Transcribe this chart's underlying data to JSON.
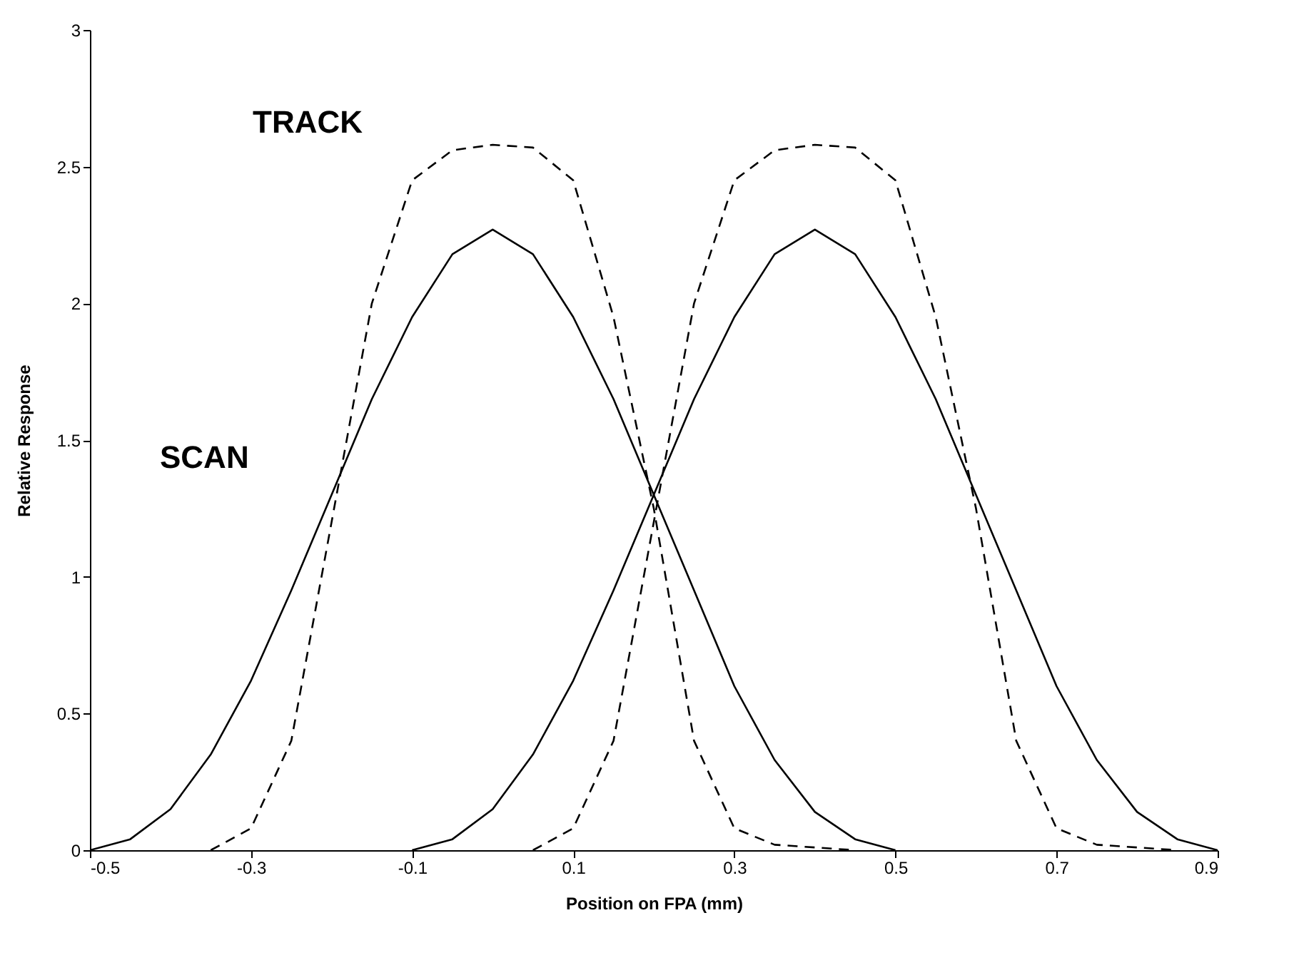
{
  "chart_data": {
    "type": "line",
    "xlabel": "Position on FPA (mm)",
    "ylabel": "Relative Response",
    "xlim": [
      -0.5,
      0.9
    ],
    "ylim": [
      0,
      3
    ],
    "xticks": [
      -0.5,
      -0.3,
      -0.1,
      0.1,
      0.3,
      0.5,
      0.7,
      0.9
    ],
    "yticks": [
      0,
      0.5,
      1,
      1.5,
      2,
      2.5,
      3
    ],
    "grid": false,
    "series": [
      {
        "color": "#000000",
        "line_style": "solid",
        "x": [
          -0.5,
          -0.45,
          -0.4,
          -0.35,
          -0.3,
          -0.25,
          -0.2,
          -0.15,
          -0.1,
          -0.05,
          0,
          0.05,
          0.1,
          0.15,
          0.2,
          0.25,
          0.3,
          0.35,
          0.4,
          0.45,
          0.5
        ],
        "values": [
          0,
          0.04,
          0.15,
          0.35,
          0.62,
          0.95,
          1.3,
          1.65,
          1.95,
          2.18,
          2.27,
          2.18,
          1.95,
          1.65,
          1.3,
          0.95,
          0.6,
          0.33,
          0.14,
          0.04,
          0
        ]
      },
      {
        "color": "#000000",
        "line_style": "solid",
        "x": [
          -0.1,
          -0.05,
          0,
          0.05,
          0.1,
          0.15,
          0.2,
          0.25,
          0.3,
          0.35,
          0.4,
          0.45,
          0.5,
          0.55,
          0.6,
          0.65,
          0.7,
          0.75,
          0.8,
          0.85,
          0.9
        ],
        "values": [
          0,
          0.04,
          0.15,
          0.35,
          0.62,
          0.95,
          1.3,
          1.65,
          1.95,
          2.18,
          2.27,
          2.18,
          1.95,
          1.65,
          1.3,
          0.95,
          0.6,
          0.33,
          0.14,
          0.04,
          0
        ]
      },
      {
        "color": "#000000",
        "line_style": "dashed",
        "x": [
          -0.35,
          -0.3,
          -0.25,
          -0.2,
          -0.15,
          -0.1,
          -0.05,
          0,
          0.05,
          0.1,
          0.15,
          0.2,
          0.25,
          0.3,
          0.35,
          0.45
        ],
        "values": [
          0,
          0.08,
          0.4,
          1.2,
          2.0,
          2.45,
          2.56,
          2.58,
          2.57,
          2.45,
          1.95,
          1.25,
          0.4,
          0.08,
          0.02,
          0
        ]
      },
      {
        "color": "#000000",
        "line_style": "dashed",
        "x": [
          0.05,
          0.1,
          0.15,
          0.2,
          0.25,
          0.3,
          0.35,
          0.4,
          0.45,
          0.5,
          0.55,
          0.6,
          0.65,
          0.7,
          0.75,
          0.85
        ],
        "values": [
          0,
          0.08,
          0.4,
          1.2,
          2.0,
          2.45,
          2.56,
          2.58,
          2.57,
          2.45,
          1.95,
          1.25,
          0.4,
          0.08,
          0.02,
          0
        ]
      }
    ],
    "annotations": [
      "TRACK",
      "SCAN"
    ]
  }
}
